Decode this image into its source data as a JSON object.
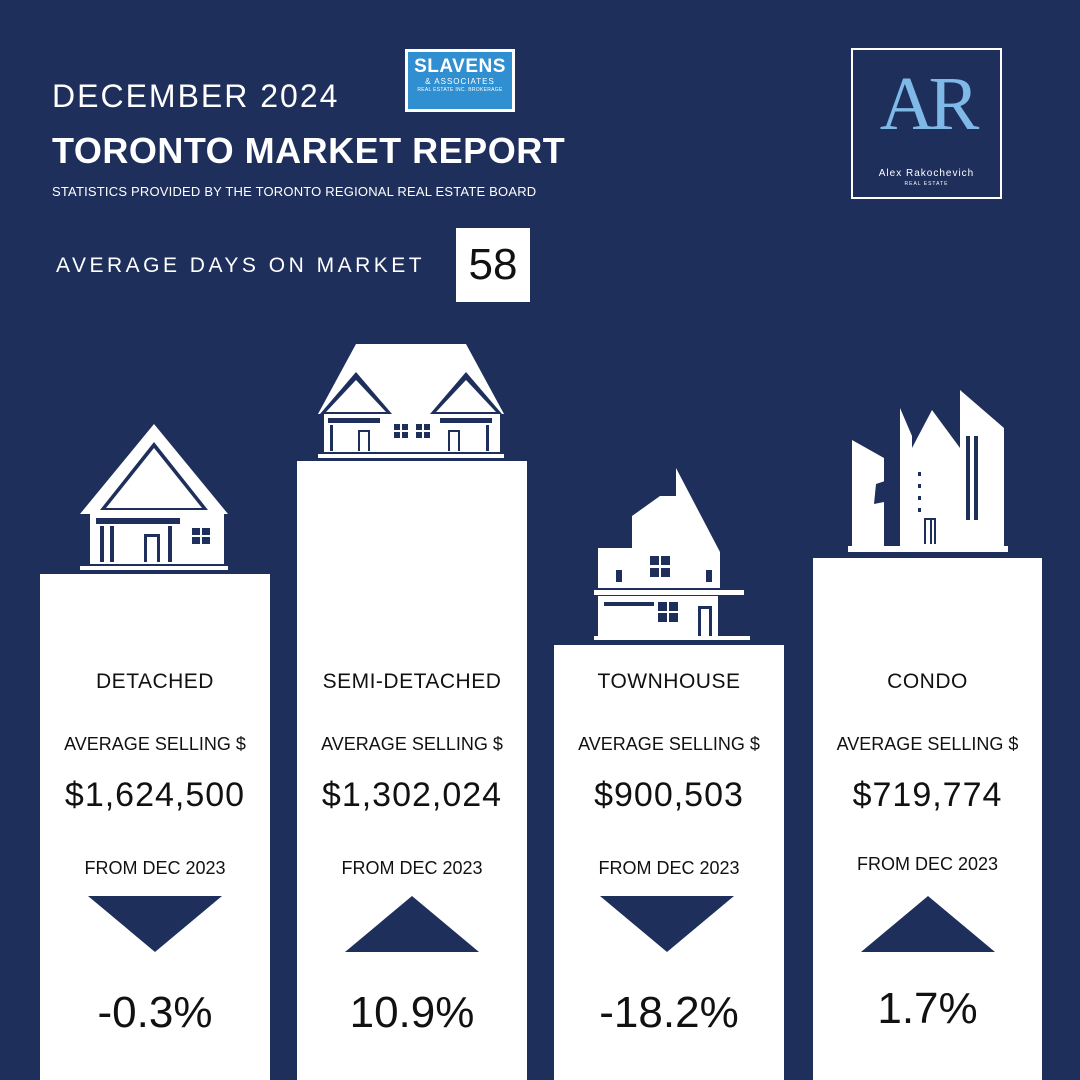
{
  "header": {
    "date": "DECEMBER 2024",
    "title": "TORONTO MARKET REPORT",
    "stats_source": "STATISTICS PROVIDED BY THE TORONTO REGIONAL REAL ESTATE BOARD"
  },
  "brokerage_logo": {
    "name": "SLAVENS",
    "sub": "& ASSOCIATES",
    "sub2": "REAL ESTATE INC. BROKERAGE"
  },
  "agent_logo": {
    "mark": "AR",
    "name": "Alex Rakochevich",
    "sub": "REAL ESTATE"
  },
  "days_on_market": {
    "label": "AVERAGE DAYS ON MARKET",
    "value": "58"
  },
  "colors": {
    "background": "#1f2f5c",
    "card": "#ffffff",
    "arrow": "#1f2f5c",
    "logo_blue": "#2f8fd1",
    "ar_blue": "#7fb9e8"
  },
  "cards": [
    {
      "type": "DETACHED",
      "avg_label": "AVERAGE SELLING $",
      "price": "$1,624,500",
      "from_label": "FROM DEC 2023",
      "direction": "down",
      "change": "-0.3%",
      "icon": "detached-house-icon"
    },
    {
      "type": "SEMI-DETACHED",
      "avg_label": "AVERAGE SELLING $",
      "price": "$1,302,024",
      "from_label": "FROM DEC 2023",
      "direction": "up",
      "change": "10.9%",
      "icon": "semi-detached-house-icon"
    },
    {
      "type": "TOWNHOUSE",
      "avg_label": "AVERAGE SELLING $",
      "price": "$900,503",
      "from_label": "FROM DEC 2023",
      "direction": "down",
      "change": "-18.2%",
      "icon": "townhouse-icon"
    },
    {
      "type": "CONDO",
      "avg_label": "AVERAGE SELLING $",
      "price": "$719,774",
      "from_label": "FROM DEC 2023",
      "direction": "up",
      "change": "1.7%",
      "icon": "condo-building-icon"
    }
  ]
}
